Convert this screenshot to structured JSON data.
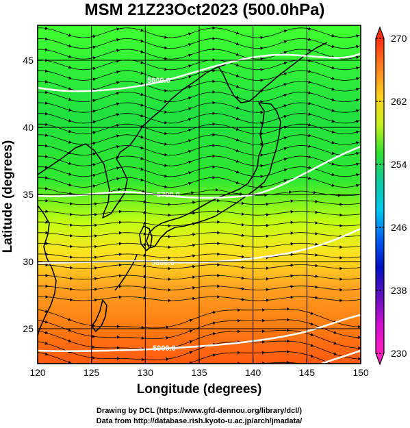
{
  "title": "MSM 21Z23Oct2023 (500.0hPa)",
  "map": {
    "xlabel": "Longitude (degrees)",
    "ylabel": "Latitude  (degrees)",
    "xlim": [
      120,
      150
    ],
    "ylim": [
      22.4,
      47.6
    ],
    "xticks": [
      "120",
      "125",
      "130",
      "135",
      "140",
      "145",
      "150"
    ],
    "yticks": [
      "25",
      "30",
      "35",
      "40",
      "45"
    ],
    "grid": true,
    "field": "temperature (shaded, K)",
    "field_gradient": [
      {
        "lat": 22.4,
        "color": "#ff5a10"
      },
      {
        "lat": 25,
        "color": "#ff7a10"
      },
      {
        "lat": 28,
        "color": "#ffa020"
      },
      {
        "lat": 30.5,
        "color": "#ffe020"
      },
      {
        "lat": 33,
        "color": "#c0ff10"
      },
      {
        "lat": 36,
        "color": "#30e830"
      },
      {
        "lat": 41,
        "color": "#20e040"
      },
      {
        "lat": 47.6,
        "color": "#40ff30"
      }
    ],
    "contour_labels": [
      "5600.0",
      "5700.0",
      "5800.0",
      "5900.0"
    ],
    "wind": "streamlines, westerly"
  },
  "colorbar": {
    "min": 230,
    "max": 270,
    "tick_labels": [
      "270",
      "262",
      "254",
      "246",
      "238",
      "230"
    ],
    "colors": [
      "#ff3010",
      "#ff8020",
      "#ffd020",
      "#c8f020",
      "#30e030",
      "#10c8a0",
      "#00c8f0",
      "#0060f0",
      "#0010c0",
      "#6010c0",
      "#d010d0",
      "#ff20c0"
    ]
  },
  "credits": {
    "line1": "Drawing by DCL (https://www.gfd-dennou.org/library/dcl/)",
    "line2": "Data from http://database.rish.kyoto-u.ac.jp/arch/jmadata/"
  }
}
